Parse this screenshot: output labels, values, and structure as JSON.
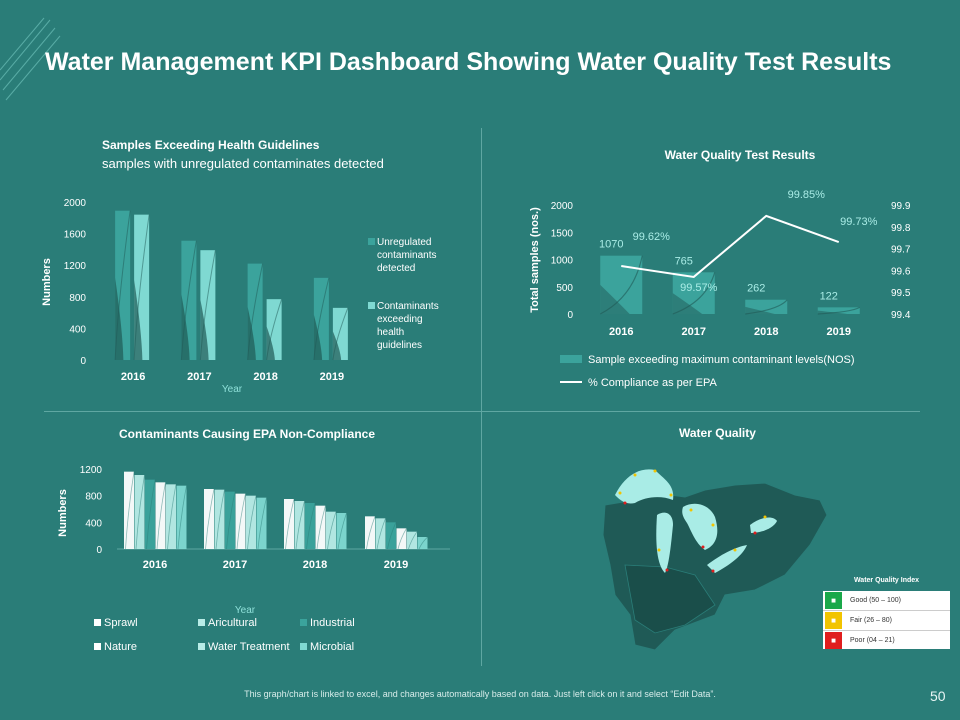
{
  "title": "Water Management KPI Dashboard Showing Water Quality Test Results",
  "footer": "This graph/chart is linked to excel, and changes automatically based on data. Just left click on it and select “Edit Data”.",
  "page_number": "50",
  "colors": {
    "bg": "#2a7d78",
    "dark": "#1f5a56",
    "teal": "#3ba39c",
    "light": "#7fd9d2",
    "lighter": "#a9ece6",
    "white": "#ffffff"
  },
  "chart_data": [
    {
      "type": "bar",
      "title": "Samples Exceeding  Health Guidelines",
      "subtitle": "samples with unregulated contaminates detected",
      "xlabel": "Year",
      "ylabel": "Numbers",
      "ylim": [
        0,
        2000
      ],
      "yticks": [
        "0",
        "400",
        "800",
        "1200",
        "1600",
        "2000"
      ],
      "categories": [
        "2016",
        "2017",
        "2018",
        "2019"
      ],
      "series": [
        {
          "name": "Unregulated contaminants detected",
          "values": [
            1890,
            1510,
            1220,
            1040
          ]
        },
        {
          "name": "Contaminants exceeding health guidelines",
          "values": [
            1840,
            1390,
            770,
            660
          ]
        }
      ],
      "legend": [
        "Unregulated",
        "contaminants",
        "detected",
        "Contaminants",
        "exceeding",
        "health",
        "guidelines"
      ]
    },
    {
      "type": "bar+line",
      "title": "Water Quality Test Results",
      "ylabel": "Total samples (nos.)",
      "ylim": [
        0,
        2000
      ],
      "yticks": [
        "0",
        "500",
        "1000",
        "1500",
        "2000"
      ],
      "y2ticks": [
        "99.4",
        "99.5",
        "99.6",
        "99.7",
        "99.8",
        "99.9"
      ],
      "y2lim": [
        99.4,
        99.9
      ],
      "categories": [
        "2016",
        "2017",
        "2018",
        "2019"
      ],
      "series": [
        {
          "name": "Sample exceeding maximum contaminant levels(NOS)",
          "values": [
            1070,
            765,
            262,
            122
          ],
          "labels": [
            "1070",
            "765",
            "262",
            "122"
          ]
        },
        {
          "name": "% Compliance as per EPA",
          "values": [
            99.62,
            99.57,
            99.85,
            99.73
          ],
          "labels": [
            "99.62%",
            "99.57%",
            "99.85%",
            "99.73%"
          ]
        }
      ]
    },
    {
      "type": "bar",
      "title": "Contaminants Causing EPA Non-Compliance",
      "xlabel": "Year",
      "ylabel": "Numbers",
      "ylim": [
        0,
        1200
      ],
      "yticks": [
        "0",
        "400",
        "800",
        "1200"
      ],
      "categories": [
        "2016",
        "2017",
        "2018",
        "2019"
      ],
      "series": [
        {
          "name": "Sprawl",
          "values": [
            1160,
            900,
            750,
            490
          ]
        },
        {
          "name": "Aricultural",
          "values": [
            1110,
            890,
            720,
            460
          ]
        },
        {
          "name": "Industrial",
          "values": [
            1040,
            860,
            690,
            400
          ]
        },
        {
          "name": "Nature",
          "values": [
            1000,
            830,
            650,
            310
          ]
        },
        {
          "name": "Water Treatment",
          "values": [
            970,
            800,
            560,
            260
          ]
        },
        {
          "name": "Microbial",
          "values": [
            950,
            770,
            540,
            180
          ]
        }
      ]
    }
  ],
  "map": {
    "title": "Water Quality",
    "legend_title": "Water Quality Index",
    "legend": [
      {
        "label": "Good (50 – 100)",
        "color": "#1aa84a"
      },
      {
        "label": "Fair (26 – 80)",
        "color": "#f2c400"
      },
      {
        "label": "Poor (04 – 21)",
        "color": "#e01e1e"
      }
    ]
  }
}
